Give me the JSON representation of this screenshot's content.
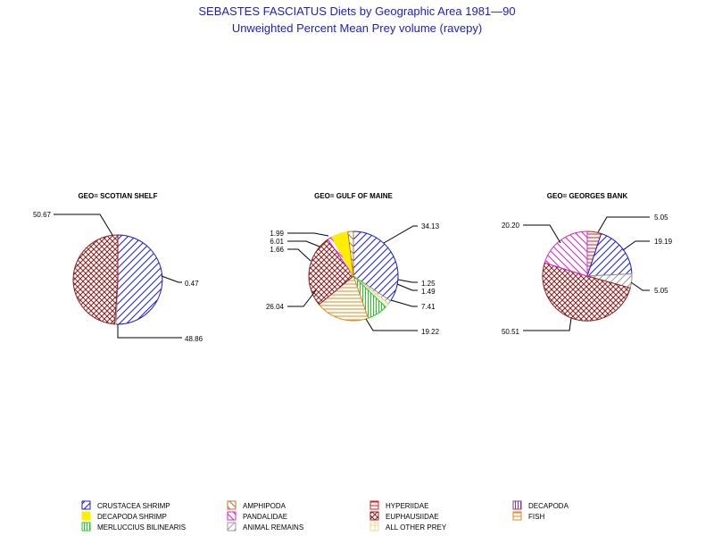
{
  "chart_data": {
    "type": "pie",
    "title": "SEBASTES FASCIATUS Diets by Geographic Area 1981—90",
    "subtitle": "Unweighted Percent Mean Prey volume (ravepy)",
    "categories": [
      {
        "key": "crustacea_shrimp",
        "name": "CRUSTACEA SHRIMP",
        "color": "#1c1cc8",
        "pattern": "diag-right"
      },
      {
        "key": "amphipoda",
        "name": "AMPHIPODA",
        "color": "#b87333",
        "pattern": "diag-left"
      },
      {
        "key": "hyperiidae",
        "name": "HYPERIIDAE",
        "color": "#cc2222",
        "pattern": "horizontal"
      },
      {
        "key": "decapoda",
        "name": "DECAPODA",
        "color": "#8a3a9a",
        "pattern": "vertical"
      },
      {
        "key": "decapoda_shrimp",
        "name": "DECAPODA SHRIMP",
        "color": "#ffee00",
        "pattern": "solid"
      },
      {
        "key": "pandalidae",
        "name": "PANDALIDAE",
        "color": "#e020c8",
        "pattern": "diag-left"
      },
      {
        "key": "euphausiidae",
        "name": "EUPHAUSIIDAE",
        "color": "#8a2020",
        "pattern": "crosshatch"
      },
      {
        "key": "fish",
        "name": "FISH",
        "color": "#e08a20",
        "pattern": "horizontal"
      },
      {
        "key": "merluccius_bilinearis",
        "name": "MERLUCCIUS BILINEARIS",
        "color": "#22cc22",
        "pattern": "vertical"
      },
      {
        "key": "animal_remains",
        "name": "ANIMAL REMAINS",
        "color": "#999999",
        "pattern": "diag-right"
      },
      {
        "key": "all_other_prey",
        "name": "ALL OTHER PREY",
        "color": "#e8d890",
        "pattern": "grid"
      }
    ],
    "pies": [
      {
        "title": "GEO= SCOTIAN SHELF",
        "slices": [
          {
            "category": "crustacea_shrimp",
            "value": 50.67,
            "label": "50.67"
          },
          {
            "category": "animal_remains",
            "value": 0.47,
            "label": "0.47"
          },
          {
            "category": "euphausiidae",
            "value": 48.86,
            "label": "48.86"
          }
        ]
      },
      {
        "title": "GEO= GULF OF MAINE",
        "slices": [
          {
            "category": "crustacea_shrimp",
            "value": 34.13,
            "label": "34.13"
          },
          {
            "category": "animal_remains",
            "value": 1.25,
            "label": "1.25"
          },
          {
            "category": "all_other_prey",
            "value": 1.49,
            "label": "1.49"
          },
          {
            "category": "merluccius_bilinearis",
            "value": 7.41,
            "label": "7.41"
          },
          {
            "category": "fish",
            "value": 19.22,
            "label": "19.22"
          },
          {
            "category": "euphausiidae",
            "value": 26.04,
            "label": "26.04"
          },
          {
            "category": "pandalidae",
            "value": 1.66,
            "label": "1.66"
          },
          {
            "category": "decapoda_shrimp",
            "value": 6.01,
            "label": "6.01"
          },
          {
            "category": "amphipoda",
            "value": 1.99,
            "label": "1.99"
          }
        ]
      },
      {
        "title": "GEO= GEORGES BANK",
        "slices": [
          {
            "category": "hyperiidae",
            "value": 5.05,
            "label": "5.05"
          },
          {
            "category": "crustacea_shrimp",
            "value": 19.19,
            "label": "19.19"
          },
          {
            "category": "animal_remains",
            "value": 5.05,
            "label": "5.05"
          },
          {
            "category": "euphausiidae",
            "value": 50.51,
            "label": "50.51"
          },
          {
            "category": "pandalidae",
            "value": 20.2,
            "label": "20.20"
          }
        ]
      }
    ],
    "legend": {
      "placement": "bottom",
      "order": [
        "crustacea_shrimp",
        "amphipoda",
        "hyperiidae",
        "decapoda",
        "decapoda_shrimp",
        "pandalidae",
        "euphausiidae",
        "fish",
        "merluccius_bilinearis",
        "animal_remains",
        "all_other_prey"
      ]
    }
  }
}
